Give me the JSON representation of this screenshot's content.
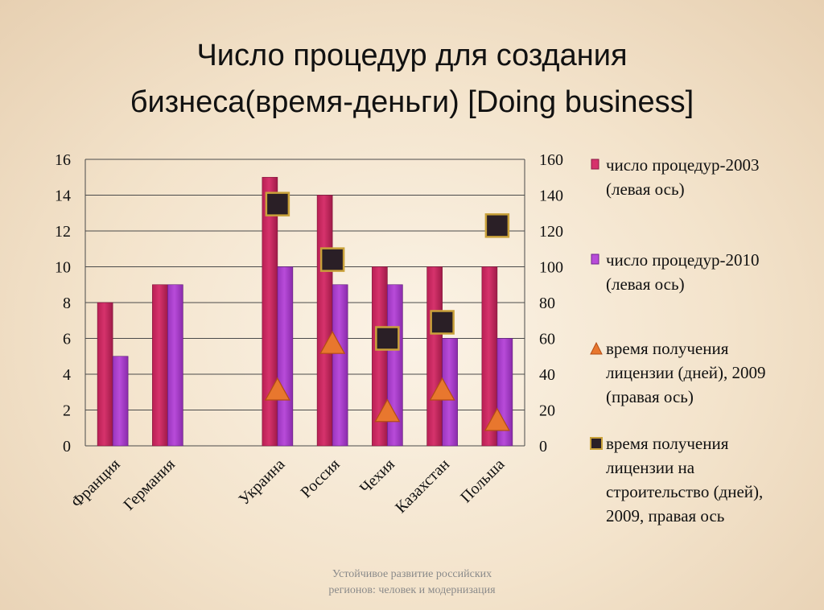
{
  "slide": {
    "title_line1": "Число процедур для создания",
    "title_line2": "бизнеса(время-деньги) [Doing business]",
    "footer_line1": "Устойчивое развитие российских",
    "footer_line2": "регионов: человек и модернизация"
  },
  "colors": {
    "bar_2003": "#d6336c",
    "bar_2010": "#b84bd9",
    "triangle": "#e8772e",
    "square": "#2a1f26",
    "square_border": "#c9a13a"
  },
  "legend": [
    {
      "marker": "bar-2003",
      "text_line1": "число процедур-2003",
      "text_line2": "(левая ось)"
    },
    {
      "marker": "bar-2010",
      "text_line1": "число процедур-2010",
      "text_line2": "(левая ось)"
    },
    {
      "marker": "triangle",
      "text_line1": "время получения",
      "text_line2": "лицензии (дней), 2009",
      "text_line3": "(правая ось)"
    },
    {
      "marker": "square",
      "text_line1": "время получения",
      "text_line2": "лицензии на",
      "text_line3": "строительство (дней),",
      "text_line4": "2009, правая ось"
    }
  ],
  "chart_data": {
    "type": "bar",
    "categories": [
      "Франция",
      "Германия",
      "",
      "Украина",
      "Россия",
      "Чехия",
      "Казахстан",
      "Польша"
    ],
    "series": [
      {
        "name": "число процедур-2003 (левая ось)",
        "axis": "left",
        "kind": "bar",
        "values": [
          8,
          9,
          null,
          15,
          14,
          10,
          10,
          10
        ]
      },
      {
        "name": "число процедур-2010 (левая ось)",
        "axis": "left",
        "kind": "bar",
        "values": [
          5,
          9,
          null,
          10,
          9,
          9,
          6,
          6
        ]
      },
      {
        "name": "время получения лицензии (дней), 2009 (правая ось)",
        "axis": "right",
        "kind": "marker-triangle",
        "values": [
          null,
          null,
          null,
          31,
          57,
          19,
          31,
          14
        ]
      },
      {
        "name": "время получения лицензии на строительство (дней), 2009, правая ось",
        "axis": "right",
        "kind": "marker-square",
        "values": [
          null,
          null,
          null,
          135,
          104,
          60,
          69,
          123
        ]
      }
    ],
    "ylim_left": [
      0,
      16
    ],
    "yticks_left": [
      "0",
      "2",
      "4",
      "6",
      "8",
      "10",
      "12",
      "14",
      "16"
    ],
    "ylim_right": [
      0,
      160
    ],
    "yticks_right": [
      "0",
      "20",
      "40",
      "60",
      "80",
      "100",
      "120",
      "140",
      "160"
    ],
    "grid": true,
    "legend_position": "right"
  }
}
